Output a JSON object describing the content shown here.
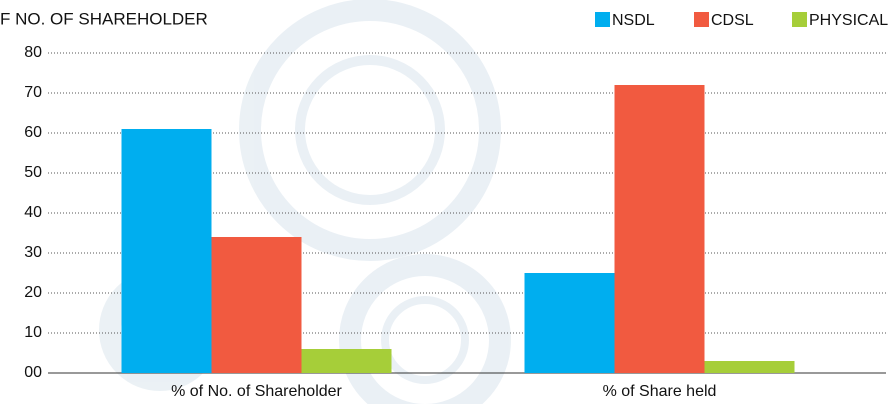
{
  "chart_data": {
    "type": "bar",
    "title": "F NO. OF SHAREHOLDER",
    "categories": [
      "% of No. of Shareholder",
      "% of Share held"
    ],
    "series": [
      {
        "name": "NSDL",
        "color": "#00aeef",
        "values": [
          61,
          25
        ]
      },
      {
        "name": "CDSL",
        "color": "#f15a40",
        "values": [
          34,
          72
        ]
      },
      {
        "name": "PHYSICAL",
        "color": "#a6ce39",
        "values": [
          6,
          3
        ]
      }
    ],
    "ylim": [
      0,
      80
    ],
    "yticks": [
      {
        "value": 0,
        "label": "00"
      },
      10,
      20,
      30,
      40,
      50,
      60,
      70,
      80
    ],
    "grid": true,
    "legend": "top-right"
  }
}
